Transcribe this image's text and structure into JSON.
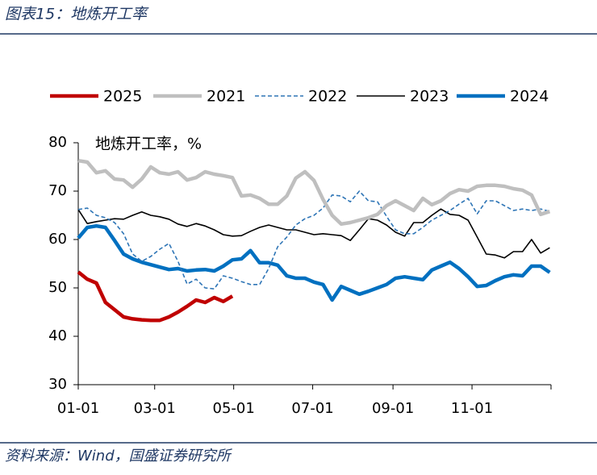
{
  "chart_data": {
    "type": "line",
    "title": "图表15：地炼开工率",
    "y_label": "地炼开工率，%",
    "source": "资料来源：Wind，国盛证券研究所",
    "x": [
      0,
      7,
      14,
      21,
      28,
      35,
      42,
      49,
      56,
      63,
      70,
      77,
      84,
      91,
      98,
      105,
      112,
      119,
      126,
      133,
      140,
      147,
      154,
      161,
      168,
      175,
      182,
      189,
      196,
      203,
      210,
      217,
      224,
      231,
      238,
      245,
      252,
      259,
      266,
      273,
      280,
      287,
      294,
      301,
      308,
      315,
      322,
      329,
      336,
      343,
      350,
      357,
      364
    ],
    "xlim": [
      0,
      365
    ],
    "xticks": [
      {
        "value": 0,
        "label": "01-01"
      },
      {
        "value": 59,
        "label": "03-01"
      },
      {
        "value": 120,
        "label": "05-01"
      },
      {
        "value": 181,
        "label": "07-01"
      },
      {
        "value": 243,
        "label": "09-01"
      },
      {
        "value": 304,
        "label": "11-01"
      }
    ],
    "ylim": [
      30,
      80
    ],
    "yticks": [
      30,
      40,
      50,
      60,
      70,
      80
    ],
    "legend": "top",
    "series": [
      {
        "name": "2025",
        "color": "#c00000",
        "style": "thick",
        "values": [
          53.3,
          51.8,
          51,
          47,
          45.5,
          44,
          43.6,
          43.4,
          43.3,
          43.3,
          44,
          45,
          46.2,
          47.5,
          47,
          48,
          47.2,
          48.3,
          null,
          null,
          null,
          null,
          null,
          null,
          null,
          null,
          null,
          null,
          null,
          null,
          null,
          null,
          null,
          null,
          null,
          null,
          null,
          null,
          null,
          null,
          null,
          null,
          null,
          null,
          null,
          null,
          null,
          null,
          null,
          null,
          null,
          null,
          null
        ]
      },
      {
        "name": "2021",
        "color": "#bfbfbf",
        "style": "thick",
        "values": [
          76.3,
          76,
          73.8,
          74.2,
          72.5,
          72.3,
          70.8,
          72.5,
          75,
          73.8,
          73.5,
          74,
          72.3,
          72.8,
          74,
          73.5,
          73.2,
          72.8,
          69,
          69.2,
          68.5,
          67.3,
          67.3,
          69,
          72.7,
          74,
          72.2,
          68.3,
          65,
          63.2,
          63.5,
          64,
          64.5,
          65.2,
          67,
          68,
          67,
          66,
          68.5,
          67.2,
          68,
          69.5,
          70.3,
          70,
          71,
          71.2,
          71.2,
          71,
          70.5,
          70.2,
          69.2,
          65.2,
          65.8
        ]
      },
      {
        "name": "2022",
        "color": "#2e75b6",
        "style": "dashed",
        "values": [
          66.2,
          66.5,
          65,
          64.5,
          63.5,
          61.2,
          57,
          55.5,
          56.5,
          58,
          59.2,
          55.5,
          50.8,
          51.8,
          50,
          49.8,
          52.5,
          52,
          51.3,
          50.7,
          50.7,
          54,
          58.5,
          60.5,
          63,
          64.3,
          65,
          66.5,
          69.2,
          69,
          67.8,
          70,
          68,
          67.8,
          64.8,
          62,
          61.2,
          61.2,
          62.5,
          64,
          65,
          66,
          67.3,
          68.5,
          65.3,
          68,
          68,
          67,
          66,
          66.3,
          66,
          66.3,
          65.8
        ]
      },
      {
        "name": "2023",
        "color": "#000000",
        "style": "thin",
        "values": [
          66.2,
          63.3,
          63.7,
          64,
          64.3,
          64.2,
          65,
          65.7,
          65,
          64.7,
          64.2,
          63.2,
          62.7,
          63.3,
          62.8,
          62,
          61,
          60.7,
          60.8,
          61.7,
          62.5,
          63,
          62.5,
          62,
          62,
          61.5,
          61,
          61.2,
          61,
          60.8,
          59.8,
          62,
          64.3,
          64,
          63,
          61.5,
          60.7,
          63.5,
          63.5,
          65,
          66.3,
          65.2,
          65,
          64,
          60.5,
          57,
          56.8,
          56.2,
          57.5,
          57.5,
          60,
          57.2,
          58.3
        ]
      },
      {
        "name": "2024",
        "color": "#0070c0",
        "style": "thick",
        "values": [
          60.3,
          62.5,
          62.8,
          62.5,
          59.8,
          57,
          56,
          55.3,
          54.8,
          54.3,
          53.8,
          54,
          53.5,
          53.7,
          53.8,
          53.5,
          54.5,
          55.8,
          56,
          57.7,
          55.2,
          55.2,
          54.7,
          52.5,
          52,
          52,
          51.2,
          50.7,
          47.5,
          50.3,
          49.5,
          48.7,
          49.3,
          50,
          50.7,
          52,
          52.3,
          52,
          51.7,
          53.7,
          54.5,
          55.3,
          54,
          52.3,
          50.3,
          50.5,
          51.5,
          52.3,
          52.7,
          52.5,
          54.5,
          54.5,
          53.2
        ]
      }
    ]
  }
}
